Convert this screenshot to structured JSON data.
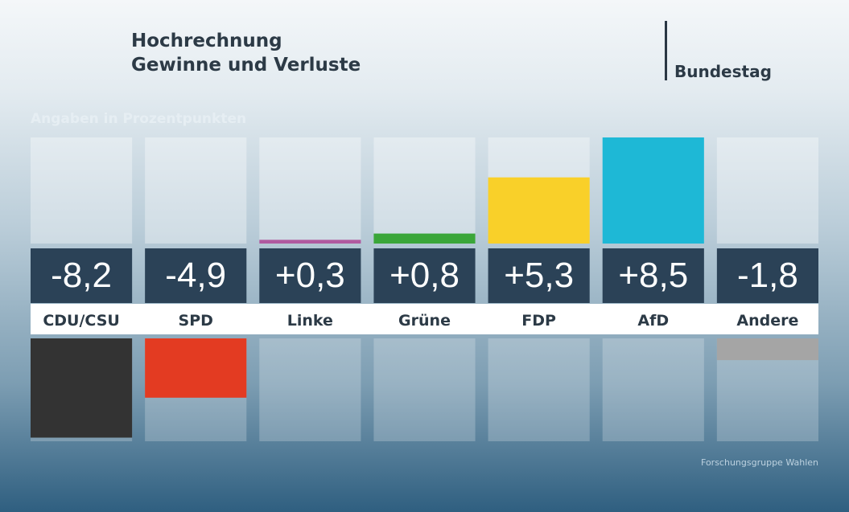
{
  "header": {
    "title_line1": "Hochrechnung",
    "title_line2": "Gewinne und Verluste",
    "context": "Bundestag"
  },
  "subtitle": "Angaben in Prozentpunkten",
  "source": "Forschungsgruppe Wahlen",
  "chart_data": {
    "type": "bar",
    "title": "Hochrechnung Gewinne und Verluste",
    "ylabel": "Angaben in Prozentpunkten",
    "categories": [
      "CDU/CSU",
      "SPD",
      "Linke",
      "Grüne",
      "FDP",
      "AfD",
      "Andere"
    ],
    "values": [
      -8.2,
      -4.9,
      0.3,
      0.8,
      5.3,
      8.5,
      -1.8
    ],
    "value_labels": [
      "-8,2",
      "-4,9",
      "+0,3",
      "+0,8",
      "+5,3",
      "+8,5",
      "-1,8"
    ],
    "colors": [
      "#333333",
      "#e33b22",
      "#b05aa0",
      "#3aa639",
      "#f9d029",
      "#1eb8d6",
      "#a5a5a5"
    ],
    "ylim": [
      -8.5,
      8.5
    ]
  }
}
